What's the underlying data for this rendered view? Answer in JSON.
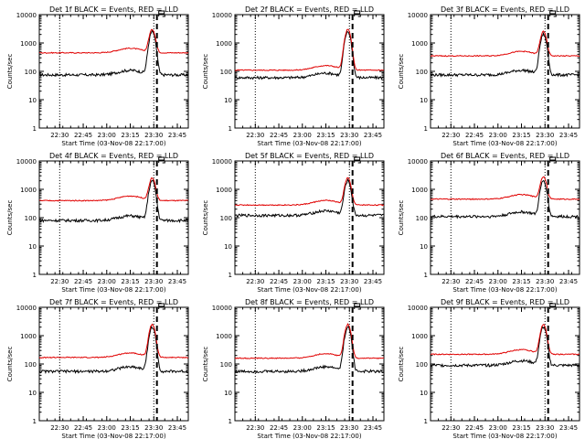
{
  "figure": {
    "x_axis_label": "Start Time (03-Nov-08 22:17:00)",
    "y_axis_label": "Counts/sec",
    "colors": {
      "events": "#000000",
      "lld": "#e00000",
      "marker": "#000000",
      "background": "#ffffff"
    },
    "flag_icon": "flag-marker-icon"
  },
  "chart_data": [
    {
      "type": "line",
      "title": "Det 1f BLACK = Events, RED = LLD",
      "xlabel": "Start Time (03-Nov-08 22:17:00)",
      "ylabel": "Counts/sec",
      "x_ticks": [
        "22:30",
        "22:45",
        "23:00",
        "23:15",
        "23:30",
        "23:45"
      ],
      "y_ticks": [
        "1",
        "10",
        "100",
        "1000",
        "10000"
      ],
      "yscale": "log",
      "ylim": [
        1,
        10000
      ],
      "xlim_minutes_from_start": [
        0,
        95
      ],
      "dotted_lines_at": [
        "22:30",
        "23:30"
      ],
      "dashed_line_at": "23:32",
      "series": [
        {
          "color": "#000000",
          "baseline": 75,
          "peak": 2500
        },
        {
          "color": "#e00000",
          "baseline": 450,
          "peak": 3000
        }
      ]
    },
    {
      "type": "line",
      "title": "Det 2f BLACK = Events, RED = LLD",
      "xlabel": "Start Time (03-Nov-08 22:17:00)",
      "ylabel": "Counts/sec",
      "x_ticks": [
        "22:30",
        "22:45",
        "23:00",
        "23:15",
        "23:30",
        "23:45"
      ],
      "y_ticks": [
        "1",
        "10",
        "100",
        "1000",
        "10000"
      ],
      "yscale": "log",
      "ylim": [
        1,
        10000
      ],
      "xlim_minutes_from_start": [
        0,
        95
      ],
      "dotted_lines_at": [
        "22:30",
        "23:30"
      ],
      "dashed_line_at": "23:32",
      "series": [
        {
          "color": "#000000",
          "baseline": 60,
          "peak": 2500
        },
        {
          "color": "#e00000",
          "baseline": 110,
          "peak": 3000
        }
      ]
    },
    {
      "type": "line",
      "title": "Det 3f BLACK = Events, RED = LLD",
      "xlabel": "Start Time (03-Nov-08 22:17:00)",
      "ylabel": "Counts/sec",
      "x_ticks": [
        "22:30",
        "22:45",
        "23:00",
        "23:15",
        "23:30",
        "23:45"
      ],
      "y_ticks": [
        "1",
        "10",
        "100",
        "1000",
        "10000"
      ],
      "yscale": "log",
      "ylim": [
        1,
        10000
      ],
      "xlim_minutes_from_start": [
        0,
        95
      ],
      "dotted_lines_at": [
        "22:30",
        "23:30"
      ],
      "dashed_line_at": "23:32",
      "series": [
        {
          "color": "#000000",
          "baseline": 75,
          "peak": 2000
        },
        {
          "color": "#e00000",
          "baseline": 350,
          "peak": 2500
        }
      ]
    },
    {
      "type": "line",
      "title": "Det 4f BLACK = Events, RED = LLD",
      "xlabel": "Start Time (03-Nov-08 22:17:00)",
      "ylabel": "Counts/sec",
      "x_ticks": [
        "22:30",
        "22:45",
        "23:00",
        "23:15",
        "23:30",
        "23:45"
      ],
      "y_ticks": [
        "1",
        "10",
        "100",
        "1000",
        "10000"
      ],
      "yscale": "log",
      "ylim": [
        1,
        10000
      ],
      "xlim_minutes_from_start": [
        0,
        95
      ],
      "dotted_lines_at": [
        "22:30",
        "23:30"
      ],
      "dashed_line_at": "23:32",
      "series": [
        {
          "color": "#000000",
          "baseline": 80,
          "peak": 2000
        },
        {
          "color": "#e00000",
          "baseline": 400,
          "peak": 2500
        }
      ]
    },
    {
      "type": "line",
      "title": "Det 5f BLACK = Events, RED = LLD",
      "xlabel": "Start Time (03-Nov-08 22:17:00)",
      "ylabel": "Counts/sec",
      "x_ticks": [
        "22:30",
        "22:45",
        "23:00",
        "23:15",
        "23:30",
        "23:45"
      ],
      "y_ticks": [
        "1",
        "10",
        "100",
        "1000",
        "10000"
      ],
      "yscale": "log",
      "ylim": [
        1,
        10000
      ],
      "xlim_minutes_from_start": [
        0,
        95
      ],
      "dotted_lines_at": [
        "22:30",
        "23:30"
      ],
      "dashed_line_at": "23:32",
      "series": [
        {
          "color": "#000000",
          "baseline": 120,
          "peak": 2000
        },
        {
          "color": "#e00000",
          "baseline": 280,
          "peak": 2500
        }
      ]
    },
    {
      "type": "line",
      "title": "Det 6f BLACK = Events, RED = LLD",
      "xlabel": "Start Time (03-Nov-08 22:17:00)",
      "ylabel": "Counts/sec",
      "x_ticks": [
        "22:30",
        "22:45",
        "23:00",
        "23:15",
        "23:30",
        "23:45"
      ],
      "y_ticks": [
        "1",
        "10",
        "100",
        "1000",
        "10000"
      ],
      "yscale": "log",
      "ylim": [
        1,
        10000
      ],
      "xlim_minutes_from_start": [
        0,
        95
      ],
      "dotted_lines_at": [
        "22:30",
        "23:30"
      ],
      "dashed_line_at": "23:32",
      "series": [
        {
          "color": "#000000",
          "baseline": 110,
          "peak": 2000
        },
        {
          "color": "#e00000",
          "baseline": 450,
          "peak": 2800
        }
      ]
    },
    {
      "type": "line",
      "title": "Det 7f BLACK = Events, RED = LLD",
      "xlabel": "Start Time (03-Nov-08 22:17:00)",
      "ylabel": "Counts/sec",
      "x_ticks": [
        "22:30",
        "22:45",
        "23:00",
        "23:15",
        "23:30",
        "23:45"
      ],
      "y_ticks": [
        "1",
        "10",
        "100",
        "1000",
        "10000"
      ],
      "yscale": "log",
      "ylim": [
        1,
        10000
      ],
      "xlim_minutes_from_start": [
        0,
        95
      ],
      "dotted_lines_at": [
        "22:30",
        "23:30"
      ],
      "dashed_line_at": "23:32",
      "series": [
        {
          "color": "#000000",
          "baseline": 55,
          "peak": 2000
        },
        {
          "color": "#e00000",
          "baseline": 170,
          "peak": 2500
        }
      ]
    },
    {
      "type": "line",
      "title": "Det 8f BLACK = Events, RED = LLD",
      "xlabel": "Start Time (03-Nov-08 22:17:00)",
      "ylabel": "Counts/sec",
      "x_ticks": [
        "22:30",
        "22:45",
        "23:00",
        "23:15",
        "23:30",
        "23:45"
      ],
      "y_ticks": [
        "1",
        "10",
        "100",
        "1000",
        "10000"
      ],
      "yscale": "log",
      "ylim": [
        1,
        10000
      ],
      "xlim_minutes_from_start": [
        0,
        95
      ],
      "dotted_lines_at": [
        "22:30",
        "23:30"
      ],
      "dashed_line_at": "23:32",
      "series": [
        {
          "color": "#000000",
          "baseline": 55,
          "peak": 2000
        },
        {
          "color": "#e00000",
          "baseline": 160,
          "peak": 2500
        }
      ]
    },
    {
      "type": "line",
      "title": "Det 9f BLACK = Events, RED = LLD",
      "xlabel": "Start Time (03-Nov-08 22:17:00)",
      "ylabel": "Counts/sec",
      "x_ticks": [
        "22:30",
        "22:45",
        "23:00",
        "23:15",
        "23:30",
        "23:45"
      ],
      "y_ticks": [
        "1",
        "10",
        "100",
        "1000",
        "10000"
      ],
      "yscale": "log",
      "ylim": [
        1,
        10000
      ],
      "xlim_minutes_from_start": [
        0,
        95
      ],
      "dotted_lines_at": [
        "22:30",
        "23:30"
      ],
      "dashed_line_at": "23:32",
      "series": [
        {
          "color": "#000000",
          "baseline": 90,
          "peak": 2000
        },
        {
          "color": "#e00000",
          "baseline": 220,
          "peak": 2500
        }
      ]
    }
  ]
}
